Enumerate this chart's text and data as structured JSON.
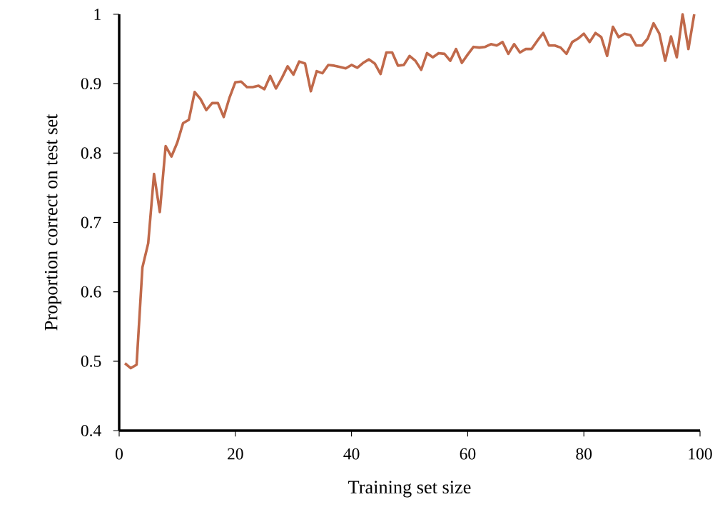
{
  "chart_data": {
    "type": "line",
    "xlabel": "Training set size",
    "ylabel": "Proportion correct on test set",
    "x": [
      1,
      2,
      3,
      4,
      5,
      6,
      7,
      8,
      9,
      10,
      11,
      12,
      13,
      14,
      15,
      16,
      17,
      18,
      19,
      20,
      21,
      22,
      23,
      24,
      25,
      26,
      27,
      28,
      29,
      30,
      31,
      32,
      33,
      34,
      35,
      36,
      37,
      38,
      39,
      40,
      41,
      42,
      43,
      44,
      45,
      46,
      47,
      48,
      49,
      50,
      51,
      52,
      53,
      54,
      55,
      56,
      57,
      58,
      59,
      60,
      61,
      62,
      63,
      64,
      65,
      66,
      67,
      68,
      69,
      70,
      71,
      72,
      73,
      74,
      75,
      76,
      77,
      78,
      79,
      80,
      81,
      82,
      83,
      84,
      85,
      86,
      87,
      88,
      89,
      90,
      91,
      92,
      93,
      94,
      95,
      96,
      97,
      98,
      99
    ],
    "series": [
      {
        "color": "#c0694a",
        "values": [
          0.497,
          0.49,
          0.495,
          0.635,
          0.67,
          0.77,
          0.715,
          0.81,
          0.795,
          0.815,
          0.843,
          0.848,
          0.888,
          0.878,
          0.862,
          0.872,
          0.872,
          0.852,
          0.88,
          0.902,
          0.903,
          0.895,
          0.895,
          0.897,
          0.892,
          0.911,
          0.893,
          0.908,
          0.925,
          0.913,
          0.932,
          0.929,
          0.889,
          0.918,
          0.915,
          0.927,
          0.926,
          0.924,
          0.922,
          0.927,
          0.923,
          0.93,
          0.935,
          0.929,
          0.914,
          0.945,
          0.945,
          0.926,
          0.927,
          0.94,
          0.933,
          0.92,
          0.944,
          0.938,
          0.944,
          0.943,
          0.933,
          0.95,
          0.93,
          0.942,
          0.953,
          0.952,
          0.953,
          0.957,
          0.955,
          0.96,
          0.943,
          0.957,
          0.945,
          0.95,
          0.95,
          0.962,
          0.973,
          0.955,
          0.955,
          0.952,
          0.943,
          0.96,
          0.965,
          0.972,
          0.96,
          0.973,
          0.967,
          0.94,
          0.982,
          0.967,
          0.972,
          0.97,
          0.955,
          0.955,
          0.965,
          0.987,
          0.972,
          0.933,
          0.968,
          0.938,
          1.0,
          0.95,
          1.0
        ]
      }
    ],
    "xlim": [
      0,
      100
    ],
    "ylim": [
      0.4,
      1
    ],
    "xticks": [
      0,
      20,
      40,
      60,
      80,
      100
    ],
    "yticks": [
      0.4,
      0.5,
      0.6,
      0.7,
      0.8,
      0.9,
      1
    ],
    "grid": false,
    "marker": "none",
    "line_style": "solid"
  }
}
